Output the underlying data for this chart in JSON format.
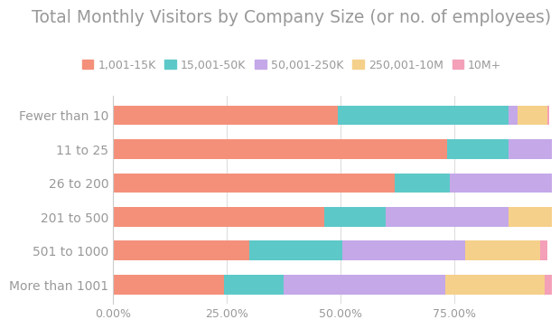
{
  "title": "Total Monthly Visitors by Company Size (or no. of employees)",
  "categories": [
    "Fewer than 10",
    "11 to 25",
    "26 to 200",
    "201 to 500",
    "501 to 1000",
    "More than 1001"
  ],
  "series": [
    {
      "label": "1,001-15K",
      "color": "#F4907A",
      "values": [
        49.5,
        73.5,
        62.0,
        46.5,
        30.0,
        24.5
      ]
    },
    {
      "label": "15,001-50K",
      "color": "#5DC8C8",
      "values": [
        37.5,
        13.5,
        12.0,
        13.5,
        20.5,
        13.0
      ]
    },
    {
      "label": "50,001-250K",
      "color": "#C4A8E8",
      "values": [
        2.0,
        11.5,
        23.5,
        27.0,
        27.0,
        35.5
      ]
    },
    {
      "label": "250,001-10M",
      "color": "#F5D08A",
      "values": [
        6.5,
        0.0,
        0.0,
        9.5,
        16.5,
        22.0
      ]
    },
    {
      "label": "10M+",
      "color": "#F4A0B8",
      "values": [
        0.5,
        1.5,
        0.5,
        0.0,
        1.5,
        2.0
      ]
    }
  ],
  "background_color": "#ffffff",
  "title_color": "#999999",
  "title_fontsize": 13.5,
  "label_fontsize": 10,
  "tick_fontsize": 9,
  "legend_fontsize": 9,
  "bar_height": 0.58,
  "xlim_max": 96.5,
  "xtick_values": [
    0,
    25,
    50,
    75
  ],
  "xtick_labels": [
    "0.00%",
    "25.00%",
    "50.00%",
    "75.00%"
  ]
}
